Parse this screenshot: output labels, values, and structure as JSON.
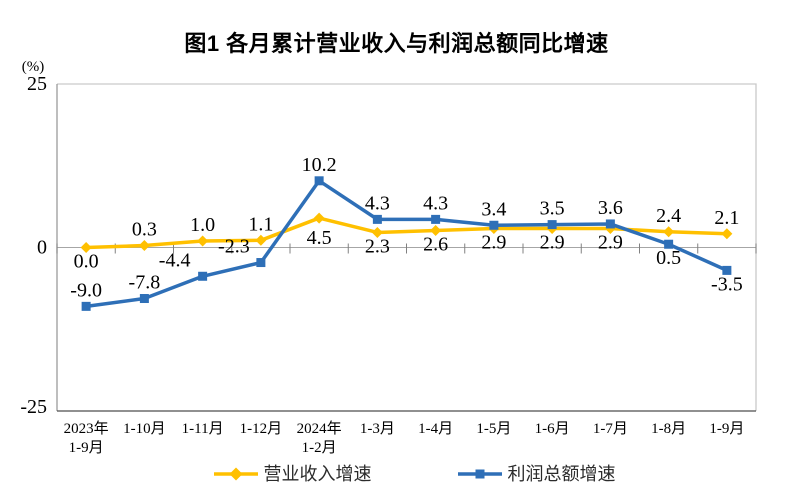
{
  "figure": {
    "title": "图1  各月累计营业收入与利润总额同比增速"
  },
  "chart_data": {
    "type": "line",
    "title": "图1  各月累计营业收入与利润总额同比增速",
    "xlabel": "",
    "ylabel": "(%)",
    "ylim": [
      -25,
      25
    ],
    "yticks": [
      25,
      0,
      -25
    ],
    "grid": false,
    "legend_position": "bottom",
    "categories": [
      "2023年\n1-9月",
      "1-10月",
      "1-11月",
      "1-12月",
      "2024年\n1-2月",
      "1-3月",
      "1-4月",
      "1-5月",
      "1-6月",
      "1-7月",
      "1-8月",
      "1-9月"
    ],
    "series": [
      {
        "name": "营业收入增速",
        "color": "#FFC000",
        "marker": "diamond",
        "values": [
          0.0,
          0.3,
          1.0,
          1.1,
          4.5,
          2.3,
          2.6,
          2.9,
          2.9,
          2.9,
          2.4,
          2.1
        ]
      },
      {
        "name": "利润总额增速",
        "color": "#2E6FB7",
        "marker": "square",
        "values": [
          -9.0,
          -7.8,
          -4.4,
          -2.3,
          10.2,
          4.3,
          4.3,
          3.4,
          3.5,
          3.6,
          0.5,
          -3.5
        ]
      }
    ],
    "colors": {
      "axis_left": "#9B9B9B",
      "axis_bottom": "#4D4D4D",
      "axis_top_right": "#C9C9C9",
      "zero_line": "#A6A6A6",
      "tick": "#808080",
      "label_text": "#000000"
    }
  }
}
